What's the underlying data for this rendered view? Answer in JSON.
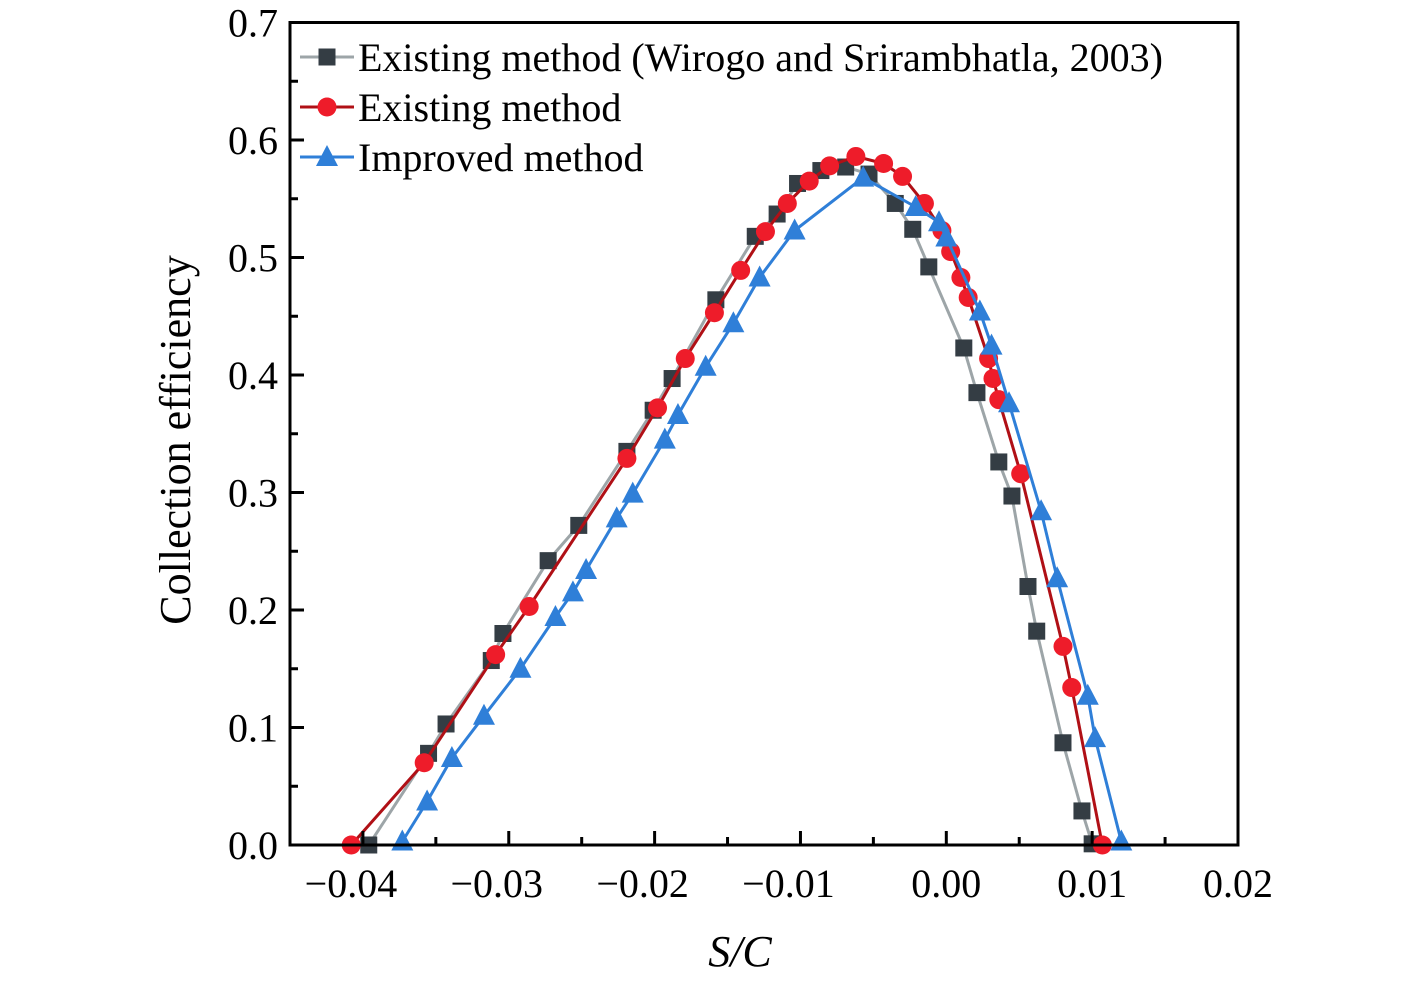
{
  "chart_data": {
    "type": "line",
    "title": "",
    "xlabel": "S/C",
    "ylabel": "Collection efficiency",
    "xlim": [
      -0.045,
      0.02
    ],
    "ylim": [
      0.0,
      0.7
    ],
    "x_ticks": [
      -0.04,
      -0.03,
      -0.02,
      -0.01,
      0.0,
      0.01,
      0.02
    ],
    "x_tick_labels": [
      "−0.04",
      "−0.03",
      "−0.02",
      "−0.01",
      "0.00",
      "0.01",
      "0.02"
    ],
    "x_minor_ticks": [
      -0.035,
      -0.025,
      -0.015,
      -0.005,
      0.005,
      0.015
    ],
    "y_ticks": [
      0.0,
      0.1,
      0.2,
      0.3,
      0.4,
      0.5,
      0.6,
      0.7
    ],
    "y_tick_labels": [
      "0.0",
      "0.1",
      "0.2",
      "0.3",
      "0.4",
      "0.5",
      "0.6",
      "0.7"
    ],
    "y_minor_ticks": [
      0.05,
      0.15,
      0.25,
      0.35,
      0.45,
      0.55,
      0.65
    ],
    "grid": false,
    "legend_position": "top-left",
    "series": [
      {
        "name": "Existing method (Wirogo and Srirambhatla, 2003)",
        "marker": "square",
        "marker_color": "#343D44",
        "line_color": "#9DA5A8",
        "x": [
          -0.0396,
          -0.0355,
          -0.0343,
          -0.0312,
          -0.0304,
          -0.0273,
          -0.0252,
          -0.0219,
          -0.0201,
          -0.0188,
          -0.0158,
          -0.0131,
          -0.0116,
          -0.0102,
          -0.0086,
          -0.0069,
          -0.0053,
          -0.0035,
          -0.0023,
          -0.0012,
          0.0012,
          0.0021,
          0.0036,
          0.0045,
          0.0056,
          0.0062,
          0.008,
          0.0093,
          0.01
        ],
        "y": [
          0.0,
          0.078,
          0.103,
          0.157,
          0.18,
          0.242,
          0.272,
          0.335,
          0.37,
          0.397,
          0.464,
          0.518,
          0.537,
          0.563,
          0.574,
          0.577,
          0.571,
          0.546,
          0.524,
          0.492,
          0.423,
          0.385,
          0.326,
          0.297,
          0.22,
          0.182,
          0.087,
          0.029,
          0.001
        ]
      },
      {
        "name": "Existing method",
        "marker": "circle",
        "marker_color": "#EE1C2A",
        "line_color": "#B01016",
        "x": [
          -0.0408,
          -0.0358,
          -0.0309,
          -0.0286,
          -0.0219,
          -0.0198,
          -0.0179,
          -0.0159,
          -0.0141,
          -0.0124,
          -0.0109,
          -0.0094,
          -0.008,
          -0.0062,
          -0.0043,
          -0.003,
          -0.0015,
          -0.0003,
          0.0003,
          0.001,
          0.0015,
          0.0029,
          0.0032,
          0.0036,
          0.0051,
          0.008,
          0.0086,
          0.0107
        ],
        "y": [
          0.0,
          0.07,
          0.162,
          0.203,
          0.329,
          0.372,
          0.414,
          0.453,
          0.489,
          0.522,
          0.546,
          0.565,
          0.578,
          0.586,
          0.58,
          0.569,
          0.546,
          0.523,
          0.505,
          0.483,
          0.466,
          0.414,
          0.397,
          0.379,
          0.316,
          0.169,
          0.134,
          0.0
        ]
      },
      {
        "name": "Improved method",
        "marker": "triangle",
        "marker_color": "#2F7FD8",
        "line_color": "#2F7FD8",
        "x": [
          -0.0373,
          -0.0356,
          -0.0339,
          -0.0317,
          -0.0292,
          -0.0268,
          -0.0256,
          -0.0247,
          -0.0226,
          -0.0215,
          -0.0193,
          -0.0184,
          -0.0165,
          -0.0146,
          -0.0128,
          -0.0104,
          -0.0057,
          -0.0021,
          -0.0005,
          0.0,
          0.0023,
          0.0031,
          0.0043,
          0.0065,
          0.0076,
          0.0097,
          0.0102,
          0.012
        ],
        "y": [
          0.003,
          0.037,
          0.074,
          0.11,
          0.15,
          0.194,
          0.215,
          0.234,
          0.278,
          0.299,
          0.345,
          0.366,
          0.407,
          0.444,
          0.483,
          0.523,
          0.568,
          0.543,
          0.53,
          0.517,
          0.454,
          0.425,
          0.376,
          0.284,
          0.227,
          0.127,
          0.091,
          0.003
        ]
      }
    ]
  }
}
